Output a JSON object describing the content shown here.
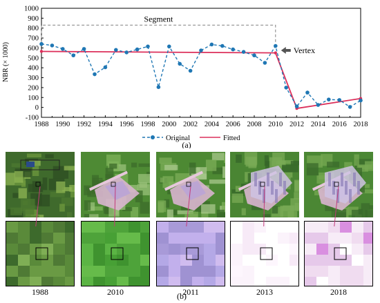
{
  "chart_data": {
    "type": "line",
    "ylabel": "NBR (× 1000)",
    "ylim": [
      -100,
      1000
    ],
    "xlim": [
      1988,
      2018
    ],
    "y_ticks": [
      "1000",
      "900",
      "800",
      "700",
      "600",
      "500",
      "400",
      "300",
      "200",
      "100",
      "0",
      "-100"
    ],
    "x_ticks": [
      "1988",
      "1990",
      "1992",
      "1994",
      "1996",
      "1998",
      "2000",
      "2002",
      "2004",
      "2006",
      "2008",
      "2010",
      "2012",
      "2014",
      "2016",
      "2018"
    ],
    "grid": false,
    "legend_position": "bottom",
    "series": [
      {
        "name": "Original",
        "color": "#1f77b4",
        "style": "dashed with circle markers",
        "x": [
          1988,
          1989,
          1990,
          1991,
          1992,
          1993,
          1994,
          1995,
          1996,
          1997,
          1998,
          1999,
          2000,
          2001,
          2002,
          2003,
          2004,
          2005,
          2006,
          2007,
          2008,
          2009,
          2010,
          2011,
          2012,
          2013,
          2014,
          2015,
          2016,
          2017,
          2018
        ],
        "y": [
          640,
          625,
          590,
          525,
          590,
          335,
          405,
          580,
          555,
          585,
          615,
          205,
          615,
          440,
          370,
          575,
          635,
          620,
          585,
          560,
          525,
          450,
          620,
          200,
          10,
          150,
          25,
          80,
          75,
          5,
          70
        ]
      },
      {
        "name": "Fitted",
        "color": "#dc2f5a",
        "style": "solid",
        "x": [
          1988,
          2010,
          2012,
          2018
        ],
        "y": [
          565,
          550,
          -10,
          90
        ]
      }
    ],
    "annotations": {
      "segment_label": "Segment",
      "vertex_label": "Vertex",
      "panel_label": "(a)"
    }
  },
  "panel_b": {
    "label": "(b)",
    "years": [
      "1988",
      "2010",
      "2011",
      "2013",
      "2018"
    ]
  },
  "colors": {
    "original": "#1f77b4",
    "fitted": "#dc2f5a"
  }
}
